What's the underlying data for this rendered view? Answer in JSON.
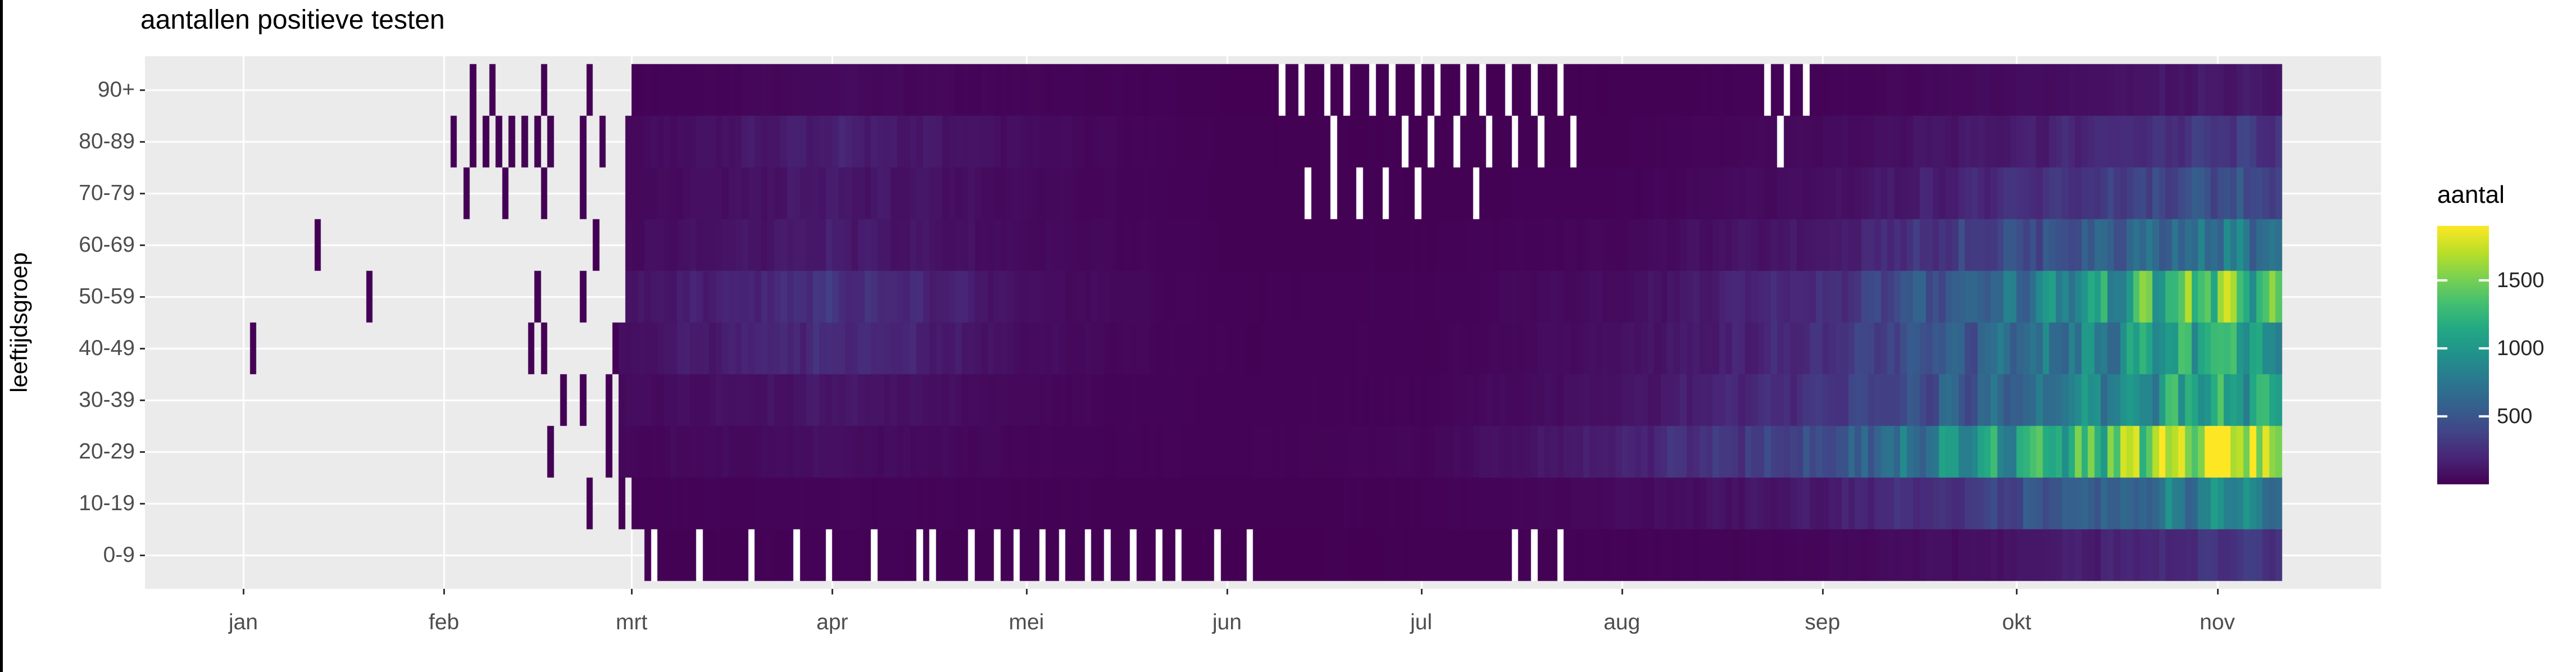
{
  "style": {
    "background": "#ffffff",
    "panel_background": "#ebebeb",
    "grid_color": "#ffffff",
    "axis_text_color": "#4d4d4d",
    "title_color": "#000000",
    "missing_day_color": "#ffffff",
    "left_border_color": "#000000"
  },
  "chart_data": {
    "type": "heatmap",
    "title": "aantallen positieve testen",
    "xlabel": "",
    "ylabel": "leeftijdsgroep",
    "x_tick_labels": [
      "jan",
      "feb",
      "mrt",
      "apr",
      "mei",
      "jun",
      "jul",
      "aug",
      "sep",
      "okt",
      "nov"
    ],
    "y_categories": [
      "90+",
      "80-89",
      "70-79",
      "60-69",
      "50-59",
      "40-49",
      "30-39",
      "20-29",
      "10-19",
      "0-9"
    ],
    "legend": {
      "title": "aantal",
      "ticks": [
        500,
        1000,
        1500
      ],
      "limits": [
        0,
        1900
      ],
      "palette": "viridis",
      "viridis_stops": [
        "#440154",
        "#482576",
        "#414487",
        "#35608D",
        "#2A788E",
        "#21918C",
        "#22A884",
        "#43BF71",
        "#7AD151",
        "#BBDF27",
        "#FDE725"
      ]
    },
    "time": {
      "month_start_days": [
        0,
        31,
        60,
        91,
        121,
        152,
        182,
        213,
        244,
        274,
        305
      ],
      "anchor_days": [
        0,
        31,
        60,
        91,
        121,
        152,
        182,
        213,
        244,
        274,
        305,
        314
      ],
      "end_day": 314
    },
    "series": [
      {
        "age_group": "90+",
        "values_at_anchors": [
          0,
          0,
          12,
          45,
          20,
          2,
          1,
          3,
          15,
          55,
          120,
          110
        ],
        "continuous_from_day": 60,
        "sparse_days": [
          35,
          38,
          46,
          53
        ],
        "missing_days": [
          160,
          163,
          167,
          170,
          174,
          177,
          181,
          184,
          188,
          191,
          195,
          199,
          203,
          235,
          238,
          241
        ]
      },
      {
        "age_group": "80-89",
        "values_at_anchors": [
          0,
          0,
          40,
          160,
          55,
          4,
          2,
          8,
          45,
          150,
          300,
          290
        ],
        "continuous_from_day": 59,
        "sparse_days": [
          32,
          35,
          37,
          39,
          41,
          43,
          45,
          47,
          52,
          55
        ],
        "missing_days": [
          168,
          179,
          183,
          187,
          192,
          196,
          200,
          205,
          237
        ]
      },
      {
        "age_group": "70-79",
        "values_at_anchors": [
          0,
          0,
          35,
          120,
          45,
          4,
          3,
          14,
          70,
          230,
          430,
          400
        ],
        "continuous_from_day": 59,
        "sparse_days": [
          34,
          40,
          46,
          52
        ],
        "missing_days": [
          164,
          168,
          172,
          176,
          181,
          190
        ]
      },
      {
        "age_group": "60-69",
        "values_at_anchors": [
          0,
          0,
          50,
          140,
          45,
          6,
          7,
          35,
          130,
          430,
          750,
          640
        ],
        "continuous_from_day": 59,
        "sparse_days": [
          11,
          54
        ],
        "missing_days": []
      },
      {
        "age_group": "50-59",
        "values_at_anchors": [
          0,
          0,
          90,
          280,
          70,
          9,
          12,
          65,
          240,
          720,
          1450,
          1150
        ],
        "continuous_from_day": 59,
        "sparse_days": [
          19,
          45,
          52
        ],
        "missing_days": []
      },
      {
        "age_group": "40-49",
        "values_at_anchors": [
          0,
          0,
          80,
          240,
          60,
          9,
          13,
          75,
          240,
          660,
          1150,
          950
        ],
        "continuous_from_day": 58,
        "sparse_days": [
          1,
          44,
          46,
          57
        ],
        "missing_days": []
      },
      {
        "age_group": "30-39",
        "values_at_anchors": [
          0,
          0,
          50,
          110,
          35,
          9,
          16,
          95,
          270,
          660,
          1150,
          950
        ],
        "continuous_from_day": 58,
        "sparse_days": [
          49,
          52,
          56
        ],
        "missing_days": []
      },
      {
        "age_group": "20-29",
        "values_at_anchors": [
          0,
          0,
          30,
          70,
          22,
          10,
          28,
          165,
          430,
          1080,
          1900,
          1500
        ],
        "continuous_from_day": 58,
        "sparse_days": [
          47,
          56
        ],
        "missing_days": []
      },
      {
        "age_group": "10-19",
        "values_at_anchors": [
          0,
          0,
          10,
          22,
          8,
          4,
          8,
          45,
          130,
          400,
          820,
          780
        ],
        "continuous_from_day": 60,
        "sparse_days": [
          53,
          58
        ],
        "missing_days": []
      },
      {
        "age_group": "0-9",
        "values_at_anchors": [
          0,
          0,
          5,
          10,
          4,
          2,
          3,
          10,
          28,
          95,
          260,
          290
        ],
        "continuous_from_day": 62,
        "sparse_days": [],
        "missing_days": [
          63,
          70,
          78,
          85,
          90,
          97,
          104,
          106,
          112,
          116,
          119,
          123,
          126,
          130,
          133,
          137,
          141,
          144,
          150,
          155,
          196,
          199,
          203
        ]
      }
    ]
  }
}
